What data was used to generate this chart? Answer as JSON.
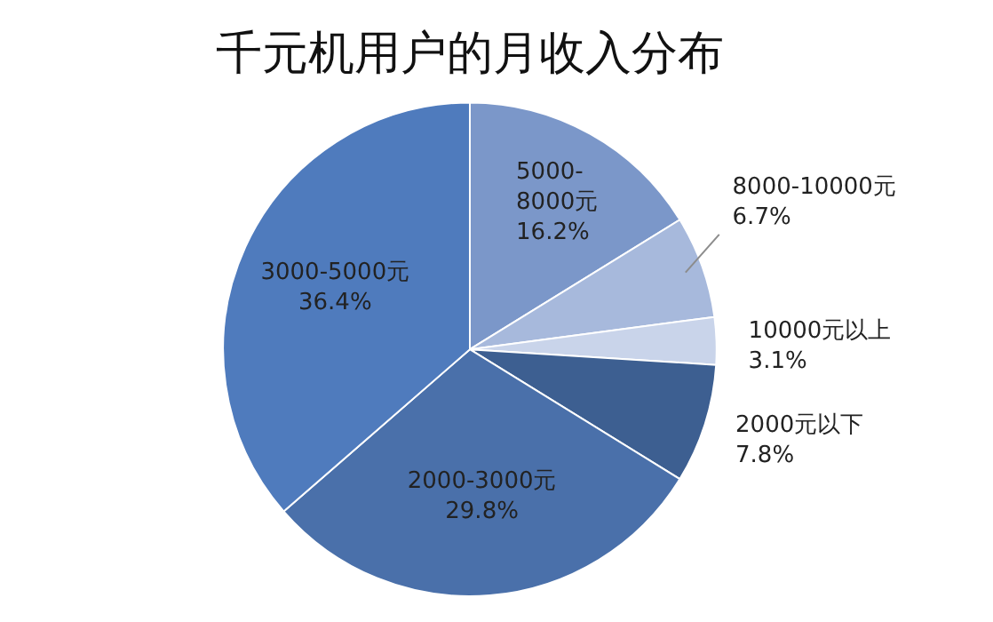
{
  "chart_data": {
    "type": "pie",
    "title": "千元机用户的月收入分布",
    "categories": [
      "5000-8000元",
      "8000-10000元",
      "10000元以上",
      "2000元以下",
      "2000-3000元",
      "3000-5000元"
    ],
    "values": [
      16.2,
      6.7,
      3.1,
      7.8,
      29.8,
      36.4
    ],
    "value_labels": [
      "16.2%",
      "6.7%",
      "3.1%",
      "7.8%",
      "29.8%",
      "36.4%"
    ],
    "colors": [
      "#7b97c9",
      "#a7b9dc",
      "#c9d4ea",
      "#3d5f91",
      "#4a70aa",
      "#4f7bbd"
    ]
  }
}
